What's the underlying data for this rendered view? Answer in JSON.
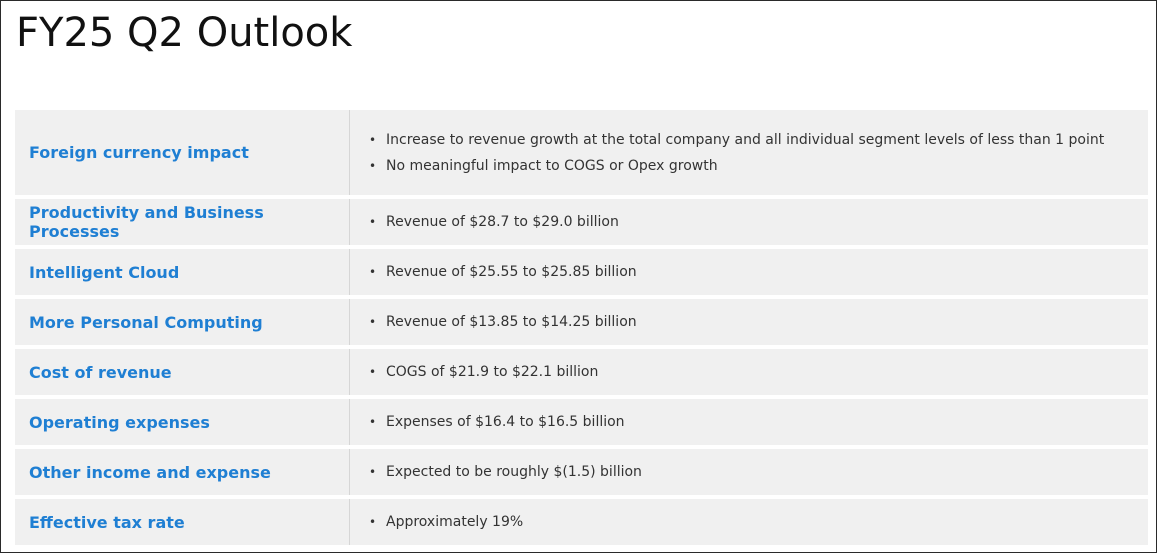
{
  "title": "FY25 Q2 Outlook",
  "rows": [
    {
      "label": "Foreign currency impact",
      "bullets": [
        "Increase to revenue growth at the total company and all individual segment levels of less than 1 point",
        "No meaningful impact to COGS or Opex growth"
      ]
    },
    {
      "label": "Productivity and Business Processes",
      "bullets": [
        "Revenue of $28.7 to $29.0 billion"
      ]
    },
    {
      "label": "Intelligent Cloud",
      "bullets": [
        "Revenue of $25.55 to $25.85 billion"
      ]
    },
    {
      "label": "More Personal Computing",
      "bullets": [
        "Revenue of $13.85 to $14.25 billion"
      ]
    },
    {
      "label": "Cost of revenue",
      "bullets": [
        "COGS of $21.9 to $22.1 billion"
      ]
    },
    {
      "label": "Operating expenses",
      "bullets": [
        "Expenses of $16.4 to $16.5 billion"
      ]
    },
    {
      "label": "Other income and expense",
      "bullets": [
        "Expected to be roughly $(1.5) billion"
      ]
    },
    {
      "label": "Effective tax rate",
      "bullets": [
        "Approximately 19%"
      ]
    }
  ],
  "bullet_glyph": "•",
  "colors": {
    "label_text": "#1f7fd3",
    "row_background": "#f0f0f0",
    "body_text": "#333333"
  }
}
